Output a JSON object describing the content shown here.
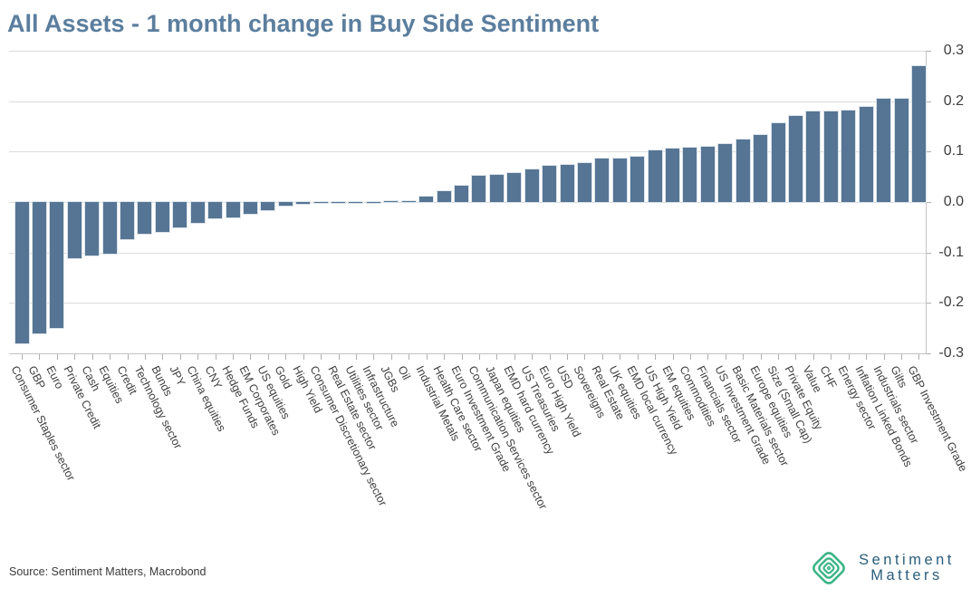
{
  "title": "All Assets - 1 month change in Buy Side Sentiment",
  "source": "Source: Sentiment Matters, Macrobond",
  "logo": {
    "line1": "Sentiment",
    "line2": "Matters"
  },
  "colors": {
    "bar": "#567594",
    "title": "#5b7e9e",
    "grid": "#dcdcdc",
    "axis": "#c4c4c4",
    "tick_label": "#3d3d3d",
    "category_label": "#404040",
    "logo_green": "#3cb586",
    "logo_text": "#2a5d7c"
  },
  "y_axis": {
    "tick_labels": [
      "0.3",
      "0.2",
      "0.1",
      "0.0",
      "-0.1",
      "-0.2",
      "-0.3"
    ],
    "tick_values": [
      0.3,
      0.2,
      0.1,
      0.0,
      -0.1,
      -0.2,
      -0.3
    ]
  },
  "chart_data": {
    "type": "bar",
    "title": "All Assets - 1 month change in Buy Side Sentiment",
    "xlabel": "",
    "ylabel": "",
    "ylim": [
      -0.3,
      0.3
    ],
    "grid": true,
    "legend": "none",
    "categories": [
      "Consumer Staples sector",
      "GBP",
      "Euro",
      "Private Credit",
      "Cash",
      "Equities",
      "Credit",
      "Technology sector",
      "Bunds",
      "JPY",
      "China equities",
      "CNY",
      "Hedge Funds",
      "EM Corporates",
      "US equities",
      "Gold",
      "High Yield",
      "Consumer Discretionary sector",
      "Real Estate sector",
      "Utilities sector",
      "Infrastructure",
      "JGBs",
      "Oil",
      "Industrial Metals",
      "Health Care sector",
      "Euro Investment Grade",
      "Communication Services sector",
      "Japan equities",
      "EMD hard currency",
      "US Treasuries",
      "Euro High Yield",
      "USD",
      "Sovereigns",
      "Real Estate",
      "UK equities",
      "EMD local currency",
      "US High Yield",
      "EM equities",
      "Commodities",
      "Financials sector",
      "US Investment Grade",
      "Basic Materials sector",
      "Europe equities",
      "Size (Small Cap)",
      "Private Equity",
      "Value",
      "CHF",
      "Energy sector",
      "Inflation Linked Bonds",
      "Industrials sector",
      "Gilts",
      "GBP Investment Grade"
    ],
    "values": [
      -0.28,
      -0.26,
      -0.25,
      -0.112,
      -0.106,
      -0.102,
      -0.074,
      -0.063,
      -0.06,
      -0.05,
      -0.041,
      -0.033,
      -0.031,
      -0.024,
      -0.016,
      -0.007,
      -0.003,
      -0.001,
      -0.001,
      0.0,
      0.0,
      0.001,
      0.002,
      0.01,
      0.022,
      0.033,
      0.052,
      0.054,
      0.057,
      0.065,
      0.071,
      0.073,
      0.078,
      0.086,
      0.087,
      0.089,
      0.102,
      0.106,
      0.107,
      0.11,
      0.115,
      0.124,
      0.133,
      0.157,
      0.17,
      0.18,
      0.179,
      0.182,
      0.189,
      0.204,
      0.205,
      0.27
    ]
  }
}
